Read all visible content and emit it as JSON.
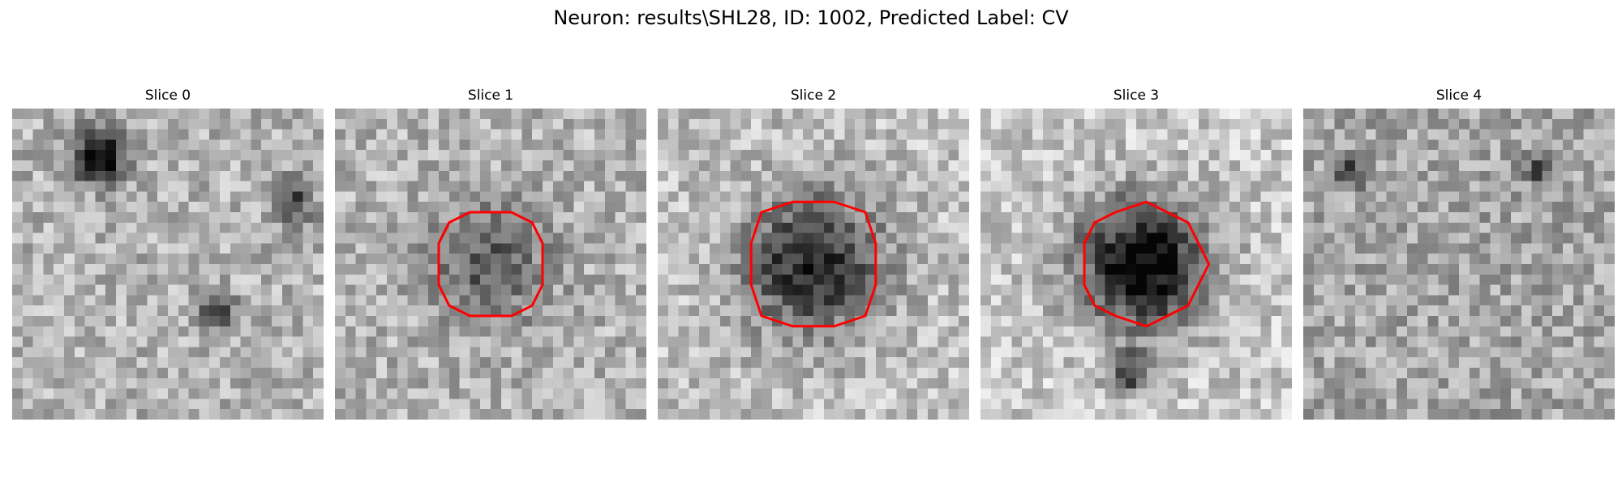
{
  "title": "Neuron: results\\SHL28, ID: 1002, Predicted Label: CV",
  "panels": [
    {
      "label": "Slice 0",
      "contour": false,
      "seed": 11,
      "blob": [
        0.28,
        0.15,
        0.1,
        0.75
      ],
      "blobs2": [
        [
          0.9,
          0.3,
          0.08,
          0.45
        ],
        [
          0.65,
          0.65,
          0.07,
          0.55
        ]
      ],
      "base": 0.7
    },
    {
      "label": "Slice 1",
      "contour": true,
      "seed": 23,
      "blob": [
        0.5,
        0.5,
        0.22,
        0.35
      ],
      "blobs2": [],
      "base": 0.7
    },
    {
      "label": "Slice 2",
      "contour": true,
      "seed": 37,
      "blob": [
        0.5,
        0.5,
        0.26,
        0.62
      ],
      "blobs2": [],
      "base": 0.75
    },
    {
      "label": "Slice 3",
      "contour": true,
      "seed": 51,
      "blob": [
        0.52,
        0.5,
        0.24,
        0.82
      ],
      "blobs2": [
        [
          0.48,
          0.85,
          0.08,
          0.5
        ]
      ],
      "base": 0.78
    },
    {
      "label": "Slice 4",
      "contour": false,
      "seed": 67,
      "blob": [
        0.5,
        0.5,
        0.0,
        0.0
      ],
      "blobs2": [
        [
          0.15,
          0.2,
          0.06,
          0.45
        ],
        [
          0.75,
          0.2,
          0.05,
          0.4
        ]
      ],
      "base": 0.65
    }
  ],
  "colors": {
    "contour": "#ff0000",
    "background": "#ffffff"
  }
}
